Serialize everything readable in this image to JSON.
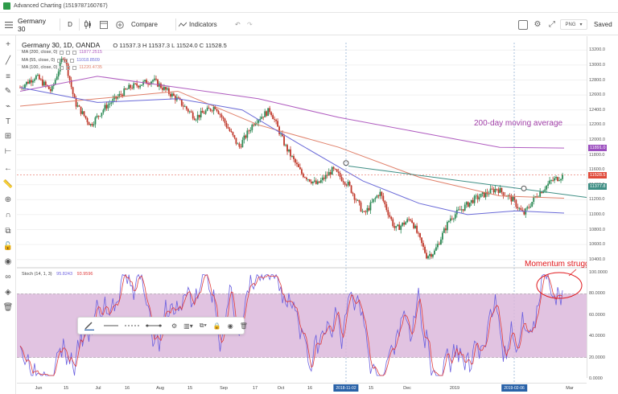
{
  "window": {
    "title": "Advanced Charting (1519787160767)"
  },
  "toolbar": {
    "symbol": "Germany 30",
    "interval": "D",
    "compare_label": "Compare",
    "indicators_label": "Indicators",
    "save_button": "PNG",
    "saved_label": "Saved"
  },
  "legend": {
    "symbol_label": "Germany 30, 1D, OANDA",
    "ohlc": "O 11537.3  H 11537.3  L 11524.0  C 11528.5",
    "indicators": [
      {
        "label": "MA (200, close, 0)",
        "value": "11877.2515",
        "color": "#b05cc0"
      },
      {
        "label": "MA (55, close, 0)",
        "value": "11018.8509",
        "color": "#6a6ad8"
      },
      {
        "label": "MA (100, close, 0)",
        "value": "11220.4735",
        "color": "#e0806a"
      }
    ]
  },
  "stoch_legend": {
    "label": "Stoch (14, 1, 3)",
    "k_value": "95.8243",
    "d_value": "93.9596"
  },
  "annotations": {
    "ma_note": "200-day moving average",
    "momentum_note": "Momentum struggling"
  },
  "price_axis": {
    "ticks": [
      "13200.0",
      "13000.0",
      "12800.0",
      "12600.0",
      "12400.0",
      "12200.0",
      "12000.0",
      "11800.0",
      "11600.0",
      "11400.0",
      "11200.0",
      "11000.0",
      "10800.0",
      "10600.0",
      "10400.0"
    ],
    "badges": [
      {
        "text": "11891.0",
        "color": "#9c4fbf"
      },
      {
        "text": "11528.5",
        "color": "#e04a3a"
      },
      {
        "text": "11377.8",
        "color": "#3f8f85"
      }
    ]
  },
  "stoch_axis": {
    "ticks": [
      "100.0000",
      "80.0000",
      "60.0000",
      "40.0000",
      "20.0000",
      "0.0000"
    ]
  },
  "time_axis": {
    "labels": [
      "Jun",
      "15",
      "Jul",
      "16",
      "Aug",
      "15",
      "Sep",
      "17",
      "Oct",
      "16",
      "15",
      "Dec",
      "2019",
      "15",
      "Mar"
    ],
    "badges": [
      "2018-11-02",
      "2019-02-06"
    ]
  },
  "colors": {
    "candle_up": "#2e8b57",
    "candle_down": "#c0392b",
    "ma200": "#b05cc0",
    "ma55": "#6a6ad8",
    "ma100": "#e0806a",
    "trendline": "#3f8f85",
    "stoch_k": "#6a5fe0",
    "stoch_d": "#e03b3b",
    "stoch_band": "#dcb8dc"
  },
  "chart_data": {
    "type": "candlestick",
    "ylim": [
      10300,
      13300
    ],
    "stoch_ylim": [
      0,
      100
    ],
    "overlays": [
      "MA 200",
      "MA 55",
      "MA 100",
      "trendline"
    ],
    "stoch_bands": [
      20,
      80
    ]
  }
}
